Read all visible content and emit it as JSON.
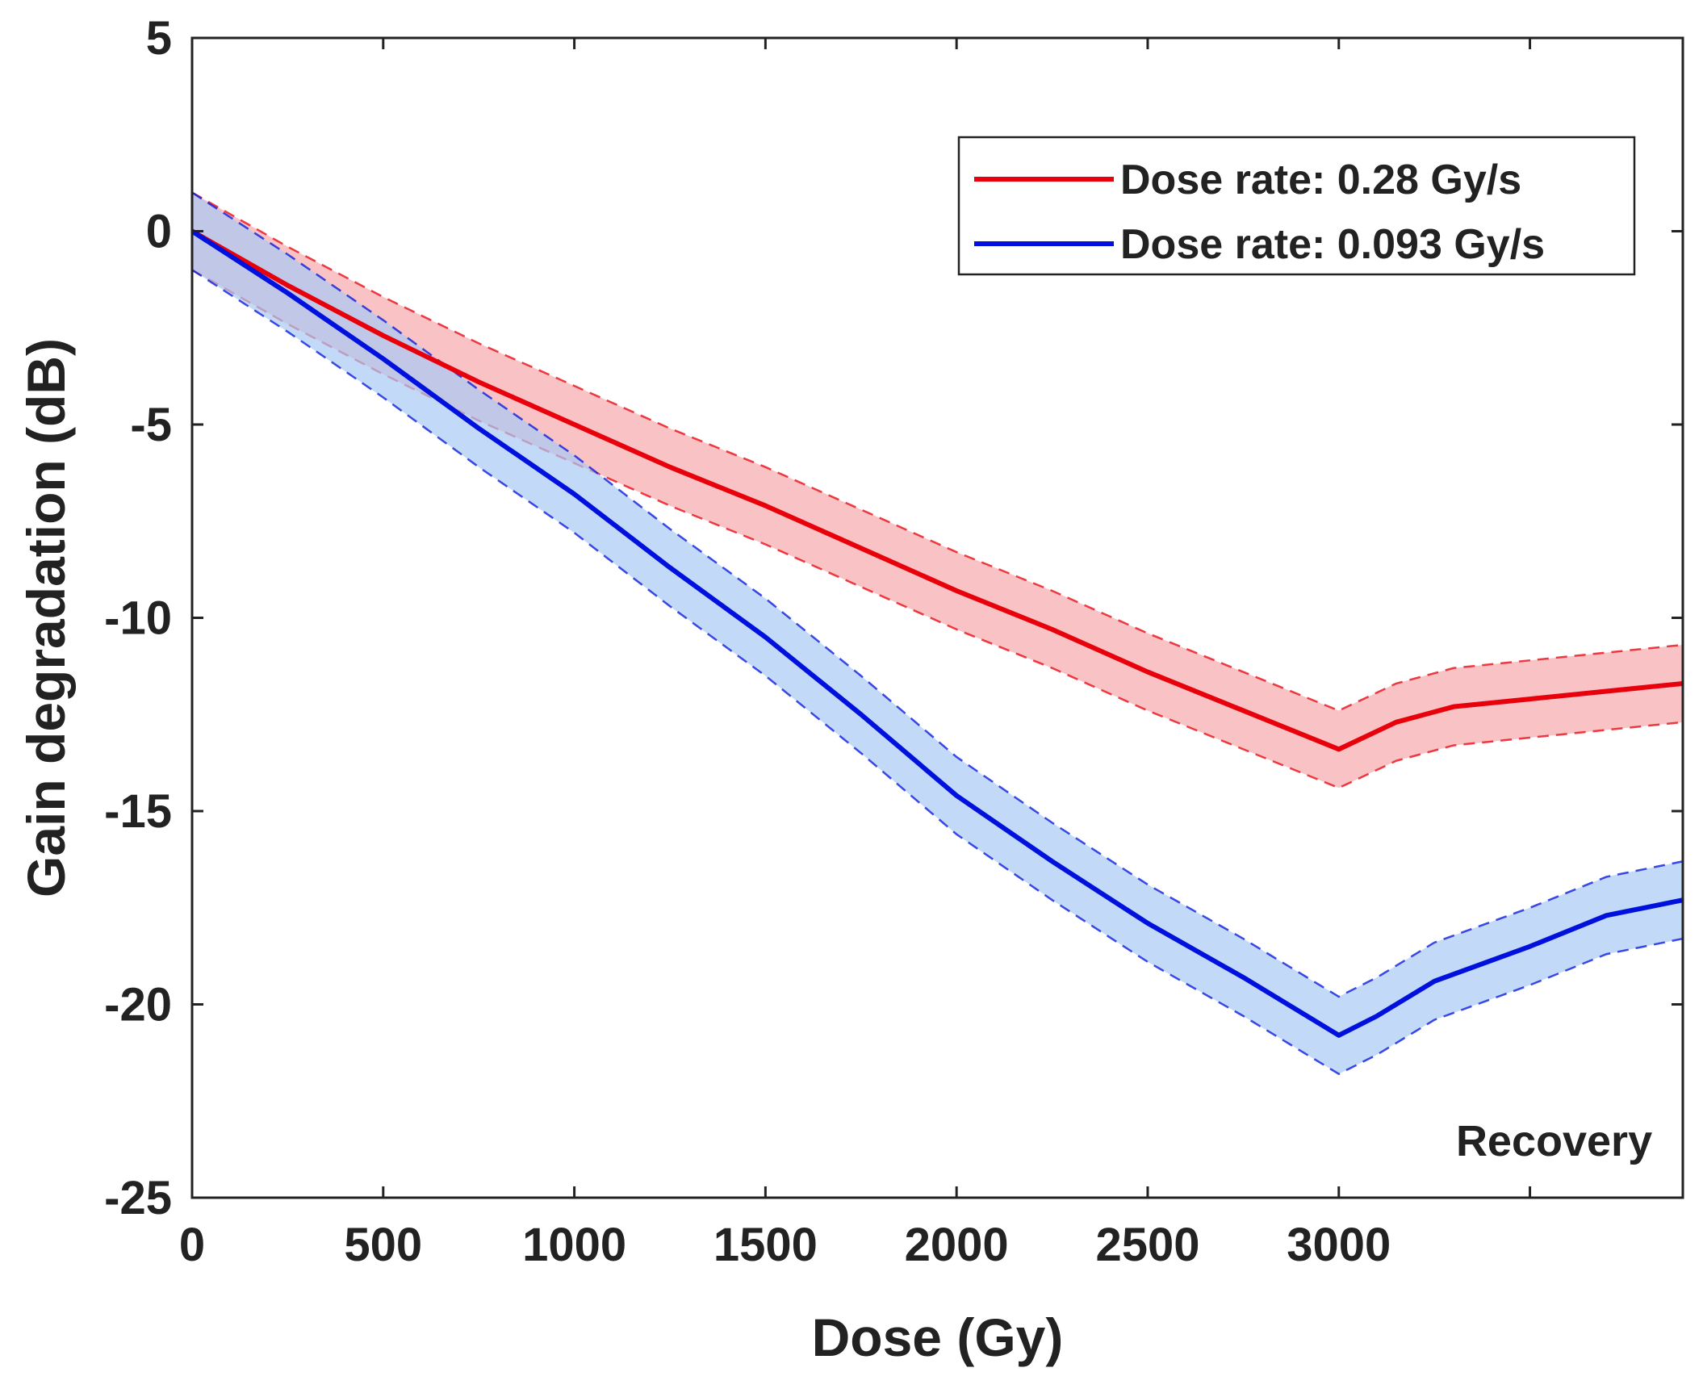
{
  "chart_data": {
    "type": "line",
    "title": "",
    "xlabel": "Dose (Gy)",
    "ylabel": "Gain degradation (dB)",
    "xlim": [
      0,
      3900
    ],
    "ylim": [
      -25,
      5
    ],
    "xticks": [
      0,
      500,
      1000,
      1500,
      2000,
      2500,
      3000,
      3500
    ],
    "xtick_labels": [
      "0",
      "500",
      "1000",
      "1500",
      "2000",
      "2500",
      "3000",
      ""
    ],
    "yticks": [
      5,
      0,
      -5,
      -10,
      -15,
      -20,
      -25
    ],
    "ytick_labels": [
      "5",
      "0",
      "-5",
      "-10",
      "-15",
      "-20",
      "-25"
    ],
    "grid": false,
    "legend_position": "top-right",
    "series": [
      {
        "name": "Dose rate: 0.28 Gy/s",
        "color": "#e8000b",
        "band_color": "#f7a8ad",
        "x": [
          0,
          250,
          500,
          750,
          1000,
          1250,
          1500,
          1750,
          2000,
          2250,
          2500,
          2750,
          3000,
          3150,
          3300,
          3500,
          3700,
          3900
        ],
        "y": [
          0,
          -1.4,
          -2.7,
          -3.9,
          -5.0,
          -6.1,
          -7.1,
          -8.2,
          -9.3,
          -10.3,
          -11.4,
          -12.4,
          -13.4,
          -12.7,
          -12.3,
          -12.1,
          -11.9,
          -11.7
        ],
        "lower": [
          -1.0,
          -2.4,
          -3.7,
          -4.9,
          -6.0,
          -7.1,
          -8.1,
          -9.2,
          -10.3,
          -11.3,
          -12.4,
          -13.4,
          -14.4,
          -13.7,
          -13.3,
          -13.1,
          -12.9,
          -12.7
        ],
        "upper": [
          1.0,
          -0.4,
          -1.7,
          -2.9,
          -4.0,
          -5.1,
          -6.1,
          -7.2,
          -8.3,
          -9.3,
          -10.4,
          -11.4,
          -12.4,
          -11.7,
          -11.3,
          -11.1,
          -10.9,
          -10.7
        ]
      },
      {
        "name": "Dose rate: 0.093 Gy/s",
        "color": "#0010dd",
        "band_color": "#a9c9f5",
        "x": [
          0,
          250,
          500,
          750,
          1000,
          1250,
          1500,
          1750,
          2000,
          2250,
          2500,
          2750,
          3000,
          3100,
          3250,
          3500,
          3700,
          3900
        ],
        "y": [
          0,
          -1.6,
          -3.3,
          -5.1,
          -6.8,
          -8.7,
          -10.5,
          -12.5,
          -14.6,
          -16.3,
          -17.9,
          -19.3,
          -20.8,
          -20.3,
          -19.4,
          -18.5,
          -17.7,
          -17.3
        ],
        "lower": [
          -1.0,
          -2.6,
          -4.3,
          -6.1,
          -7.8,
          -9.7,
          -11.5,
          -13.5,
          -15.6,
          -17.3,
          -18.9,
          -20.3,
          -21.8,
          -21.3,
          -20.4,
          -19.5,
          -18.7,
          -18.3
        ],
        "upper": [
          1.0,
          -0.6,
          -2.3,
          -4.1,
          -5.8,
          -7.7,
          -9.5,
          -11.5,
          -13.6,
          -15.3,
          -16.9,
          -18.3,
          -19.8,
          -19.3,
          -18.4,
          -17.5,
          -16.7,
          -16.3
        ]
      }
    ],
    "annotations": [
      {
        "text": "Recovery",
        "x": 3820,
        "y": -23.5
      }
    ],
    "axis_color": "#222222"
  }
}
